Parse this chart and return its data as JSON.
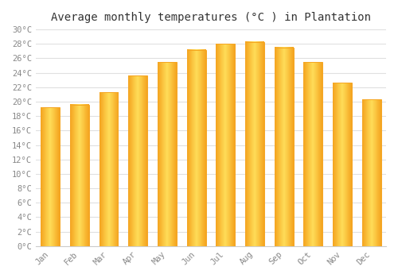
{
  "title": "Average monthly temperatures (°C ) in Plantation",
  "months": [
    "Jan",
    "Feb",
    "Mar",
    "Apr",
    "May",
    "Jun",
    "Jul",
    "Aug",
    "Sep",
    "Oct",
    "Nov",
    "Dec"
  ],
  "temperatures": [
    19.2,
    19.6,
    21.3,
    23.6,
    25.5,
    27.2,
    28.0,
    28.3,
    27.5,
    25.5,
    22.6,
    20.3
  ],
  "bar_color_center": "#FFD966",
  "bar_color_edge": "#F5A623",
  "bar_color_mid": "#FFBF00",
  "ylim": [
    0,
    30
  ],
  "ytick_step": 2,
  "background_color": "#ffffff",
  "grid_color": "#e0e0e0",
  "tick_label_color": "#888888",
  "title_color": "#333333",
  "title_fontsize": 10,
  "tick_fontsize": 7.5,
  "font_family": "monospace",
  "bar_width": 0.65
}
